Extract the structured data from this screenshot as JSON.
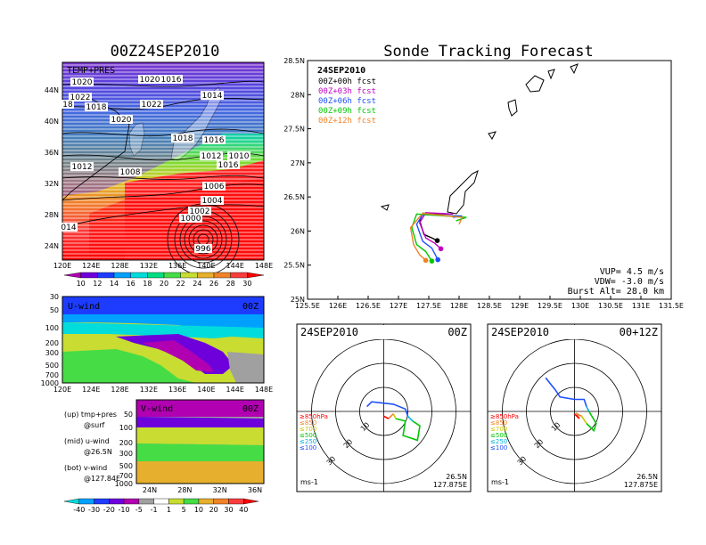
{
  "left_title": "00Z24SEP2010",
  "right_title": "Sonde Tracking Forecast",
  "map_panel": {
    "label": "TEMP+PRES",
    "x_ticks": [
      "120E",
      "124E",
      "128E",
      "132E",
      "136E",
      "140E",
      "144E",
      "148E"
    ],
    "y_ticks": [
      "44N",
      "40N",
      "36N",
      "32N",
      "28N",
      "24N"
    ],
    "isobars": [
      "1020",
      "1022",
      "1020",
      "1018",
      "1016",
      "1022",
      "18",
      "1020",
      "1018",
      "1016",
      "1014",
      "1012",
      "1010",
      "1016",
      "1012",
      "1008",
      "1006",
      "1004",
      "1002",
      "1000",
      "996",
      "014"
    ],
    "colorbar_ticks": [
      "10",
      "12",
      "14",
      "16",
      "18",
      "20",
      "22",
      "24",
      "26",
      "28",
      "30"
    ],
    "colorbar_colors": [
      "#b100b1",
      "#6e00dc",
      "#1e3cff",
      "#00a0ff",
      "#00dcdc",
      "#00dc82",
      "#46dc46",
      "#c8dc32",
      "#e6af2d",
      "#f08228",
      "#fa3c3c",
      "#ff0000"
    ]
  },
  "u_panel": {
    "label": "U-wind",
    "time": "00Z",
    "y_ticks": [
      "30",
      "50",
      "100",
      "200",
      "300",
      "500",
      "700",
      "1000"
    ],
    "x_ticks": [
      "120E",
      "124E",
      "128E",
      "132E",
      "136E",
      "140E",
      "144E",
      "148E"
    ]
  },
  "v_panel": {
    "label": "V-wind",
    "time": "00Z",
    "y_ticks": [
      "50",
      "100",
      "200",
      "300",
      "500",
      "700",
      "1000"
    ],
    "x_ticks": [
      "24N",
      "28N",
      "32N",
      "36N"
    ]
  },
  "legend_notes": [
    {
      "line1": "(up) tmp+pres",
      "line2": "@surf"
    },
    {
      "line1": "(mid) u-wind",
      "line2": "@26.5N"
    },
    {
      "line1": "(bot) v-wind",
      "line2": "@127.84E"
    }
  ],
  "wind_colorbar": {
    "ticks": [
      "-40",
      "-30",
      "-20",
      "-10",
      "-5",
      "-1",
      "1",
      "5",
      "10",
      "20",
      "30",
      "40"
    ],
    "colors": [
      "#00dcdc",
      "#00a0ff",
      "#1e3cff",
      "#6e00dc",
      "#b100b1",
      "#a0a0a0",
      "#ffffff",
      "#c8dc32",
      "#46dc46",
      "#e6af2d",
      "#f08228",
      "#fa3c3c",
      "#ff0000"
    ]
  },
  "chart_data": {
    "type": "line",
    "title": "Sonde Tracking Forecast",
    "date": "24SEP2010",
    "xlim": [
      125.5,
      131.5
    ],
    "ylim": [
      25,
      28.5
    ],
    "x_ticks": [
      "125.5E",
      "126E",
      "126.5E",
      "127E",
      "127.5E",
      "128E",
      "128.5E",
      "129E",
      "129.5E",
      "130E",
      "130.5E",
      "131E",
      "131.5E"
    ],
    "y_ticks": [
      "28.5N",
      "28N",
      "27.5N",
      "27N",
      "26.5N",
      "26N",
      "25.5N",
      "25N"
    ],
    "series": [
      {
        "name": "00Z+00h fcst",
        "color": "#000000",
        "lon": [
          127.84,
          127.84,
          127.4,
          127.35,
          127.42,
          127.55,
          127.64
        ],
        "lat": [
          26.25,
          26.25,
          26.26,
          26.15,
          25.95,
          25.9,
          25.86
        ]
      },
      {
        "name": "00Z+03h fcst",
        "color": "#c000c0",
        "lon": [
          127.84,
          127.9,
          127.45,
          127.35,
          127.45,
          127.6,
          127.7
        ],
        "lat": [
          26.25,
          26.25,
          26.27,
          26.12,
          25.9,
          25.82,
          25.74
        ]
      },
      {
        "name": "00Z+06h fcst",
        "color": "#1e50ff",
        "lon": [
          127.9,
          128.05,
          127.4,
          127.3,
          127.4,
          127.55,
          127.65
        ],
        "lat": [
          26.2,
          26.22,
          26.24,
          26.1,
          25.85,
          25.75,
          25.58
        ]
      },
      {
        "name": "00Z+09h fcst",
        "color": "#00c800",
        "lon": [
          127.95,
          128.12,
          127.3,
          127.22,
          127.3,
          127.45,
          127.55
        ],
        "lat": [
          26.15,
          26.2,
          26.25,
          26.05,
          25.8,
          25.7,
          25.56
        ]
      },
      {
        "name": "00Z+12h fcst",
        "color": "#f08228",
        "lon": [
          128.0,
          128.05,
          127.4,
          127.2,
          127.25,
          127.35,
          127.45
        ],
        "lat": [
          26.1,
          26.2,
          26.26,
          26.05,
          25.8,
          25.65,
          25.57
        ]
      }
    ],
    "annotations": [
      "VUP= 4.5 m/s",
      "VDW= -3.0 m/s",
      "Burst Alt= 28.0 km"
    ]
  },
  "hodographs": [
    {
      "date": "24SEP2010",
      "time": "00Z",
      "location": [
        "26.5N",
        "127.875E"
      ],
      "units": "ms-1",
      "ring_labels": [
        "10",
        "20",
        "30"
      ],
      "levels": [
        "≥850hPa",
        "≤850",
        "≤700",
        "≤500",
        "≤250",
        "≤100"
      ],
      "level_colors": [
        "#ff0000",
        "#f08228",
        "#c8c800",
        "#00c800",
        "#00b4dc",
        "#1e50ff"
      ],
      "traces": [
        {
          "color": "#1e50ff",
          "u": [
            -7,
            -5,
            4,
            9,
            10
          ],
          "v": [
            2,
            4,
            3,
            1,
            -2
          ]
        },
        {
          "color": "#00b4dc",
          "u": [
            10,
            12
          ],
          "v": [
            -2,
            -4
          ]
        },
        {
          "color": "#00c800",
          "u": [
            12,
            15,
            14,
            8,
            9,
            5
          ],
          "v": [
            -4,
            -6,
            -12,
            -10,
            -4,
            -3
          ]
        },
        {
          "color": "#c8c800",
          "u": [
            5,
            4
          ],
          "v": [
            -3,
            -1
          ]
        },
        {
          "color": "#f08228",
          "u": [
            4,
            2
          ],
          "v": [
            -1,
            -3
          ]
        },
        {
          "color": "#ff0000",
          "u": [
            2,
            0
          ],
          "v": [
            -3,
            -2
          ]
        }
      ]
    },
    {
      "date": "24SEP2010",
      "time": "00+12Z",
      "location": [
        "26.5N",
        "127.875E"
      ],
      "units": "ms-1",
      "ring_labels": [
        "10",
        "20",
        "30"
      ],
      "levels": [
        "≥850hPa",
        "≤850",
        "≤700",
        "≤500",
        "≤250",
        "≤100"
      ],
      "level_colors": [
        "#ff0000",
        "#f08228",
        "#c8c800",
        "#00c800",
        "#00b4dc",
        "#1e50ff"
      ],
      "traces": [
        {
          "color": "#1e50ff",
          "u": [
            -12,
            -8,
            -6,
            0,
            4,
            5
          ],
          "v": [
            14,
            9,
            6,
            5,
            5,
            2
          ]
        },
        {
          "color": "#00b4dc",
          "u": [
            5,
            6
          ],
          "v": [
            2,
            0
          ]
        },
        {
          "color": "#00c800",
          "u": [
            6,
            9,
            8,
            5
          ],
          "v": [
            0,
            -5,
            -8,
            -5
          ]
        },
        {
          "color": "#c8c800",
          "u": [
            5,
            3
          ],
          "v": [
            -5,
            -2
          ]
        },
        {
          "color": "#f08228",
          "u": [
            3,
            1,
            2
          ],
          "v": [
            -2,
            -1,
            -3
          ]
        },
        {
          "color": "#ff0000",
          "u": [
            2,
            0
          ],
          "v": [
            -3,
            -1
          ]
        }
      ]
    }
  ]
}
